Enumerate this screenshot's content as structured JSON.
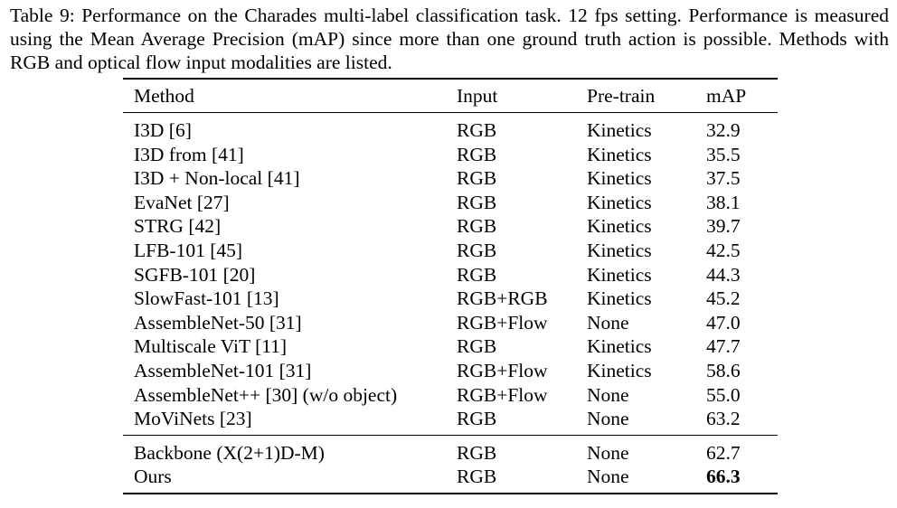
{
  "caption": "Table 9: Performance on the Charades multi-label classification task. 12 fps setting. Performance is measured using the Mean Average Precision (mAP) since more than one ground truth action is possible. Methods with RGB and optical flow input modalities are listed.",
  "table": {
    "headers": {
      "method": "Method",
      "input": "Input",
      "pretrain": "Pre-train",
      "map": "mAP"
    },
    "rows": [
      {
        "method": "I3D [6]",
        "input": "RGB",
        "pretrain": "Kinetics",
        "map": "32.9"
      },
      {
        "method": "I3D from [41]",
        "input": "RGB",
        "pretrain": "Kinetics",
        "map": "35.5"
      },
      {
        "method": "I3D + Non-local [41]",
        "input": "RGB",
        "pretrain": "Kinetics",
        "map": "37.5"
      },
      {
        "method": "EvaNet [27]",
        "input": "RGB",
        "pretrain": "Kinetics",
        "map": "38.1"
      },
      {
        "method": "STRG [42]",
        "input": "RGB",
        "pretrain": "Kinetics",
        "map": "39.7"
      },
      {
        "method": "LFB-101 [45]",
        "input": "RGB",
        "pretrain": "Kinetics",
        "map": "42.5"
      },
      {
        "method": "SGFB-101 [20]",
        "input": "RGB",
        "pretrain": "Kinetics",
        "map": "44.3"
      },
      {
        "method": "SlowFast-101 [13]",
        "input": "RGB+RGB",
        "pretrain": "Kinetics",
        "map": "45.2"
      },
      {
        "method": "AssembleNet-50 [31]",
        "input": "RGB+Flow",
        "pretrain": "None",
        "map": "47.0"
      },
      {
        "method": "Multiscale ViT [11]",
        "input": "RGB",
        "pretrain": "Kinetics",
        "map": "47.7"
      },
      {
        "method": "AssembleNet-101 [31]",
        "input": "RGB+Flow",
        "pretrain": "Kinetics",
        "map": "58.6"
      },
      {
        "method": "AssembleNet++ [30] (w/o object)",
        "input": "RGB+Flow",
        "pretrain": "None",
        "map": "55.0"
      },
      {
        "method": "MoViNets [23]",
        "input": "RGB",
        "pretrain": "None",
        "map": "63.2"
      }
    ],
    "ours_rows": [
      {
        "method": "Backbone (X(2+1)D-M)",
        "input": "RGB",
        "pretrain": "None",
        "map": "62.7"
      },
      {
        "method": "Ours",
        "input": "RGB",
        "pretrain": "None",
        "map": "66.3"
      }
    ]
  }
}
